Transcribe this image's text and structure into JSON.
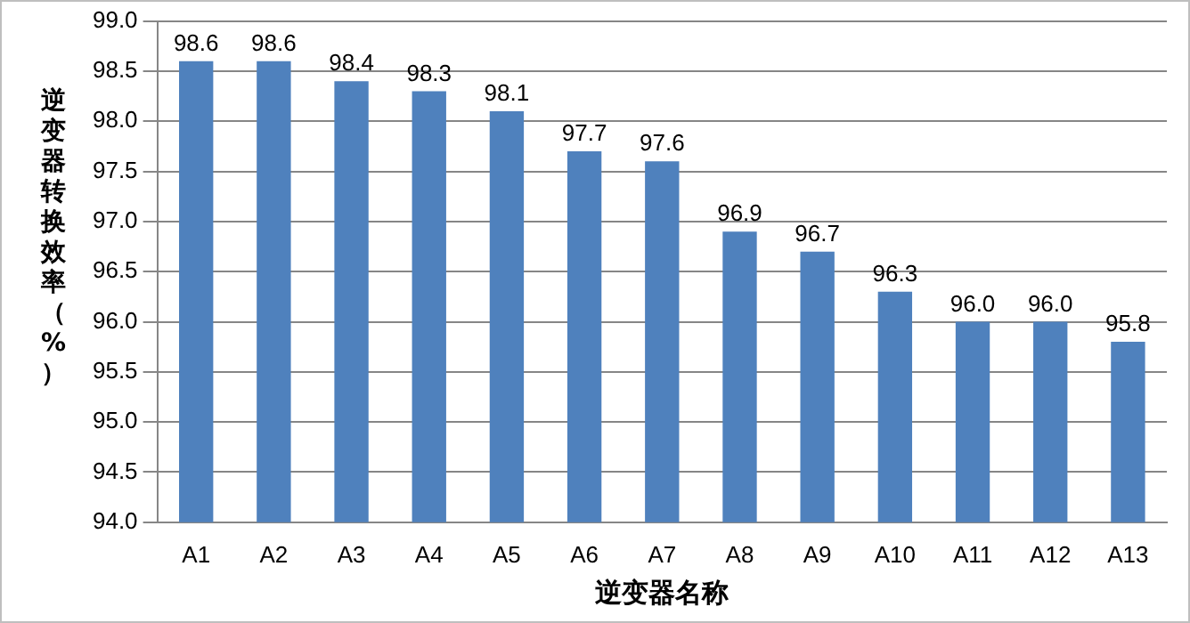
{
  "chart_data": {
    "type": "bar",
    "xlabel": "逆变器名称",
    "ylabel": "逆变器转换效率（%）",
    "categories": [
      "A1",
      "A2",
      "A3",
      "A4",
      "A5",
      "A6",
      "A7",
      "A8",
      "A9",
      "A10",
      "A11",
      "A12",
      "A13"
    ],
    "values": [
      98.6,
      98.6,
      98.4,
      98.3,
      98.1,
      97.7,
      97.6,
      96.9,
      96.7,
      96.3,
      96.0,
      96.0,
      95.8
    ],
    "value_labels": [
      "98.6",
      "98.6",
      "98.4",
      "98.3",
      "98.1",
      "97.7",
      "97.6",
      "96.9",
      "96.7",
      "96.3",
      "96.0",
      "96.0",
      "95.8"
    ],
    "color": "#4f81bd",
    "ylim": [
      94,
      99
    ],
    "yticks": [
      {
        "value": 94,
        "label": "94.0"
      },
      {
        "value": 94.5,
        "label": "94.5"
      },
      {
        "value": 95,
        "label": "95.0"
      },
      {
        "value": 95.5,
        "label": "95.5"
      },
      {
        "value": 96,
        "label": "96.0"
      },
      {
        "value": 96.5,
        "label": "96.5"
      },
      {
        "value": 97,
        "label": "97.0"
      },
      {
        "value": 97.5,
        "label": "97.5"
      },
      {
        "value": 98,
        "label": "98.0"
      },
      {
        "value": 98.5,
        "label": "98.5"
      },
      {
        "value": 99,
        "label": "99.0"
      }
    ],
    "grid": "y",
    "legend": false
  }
}
